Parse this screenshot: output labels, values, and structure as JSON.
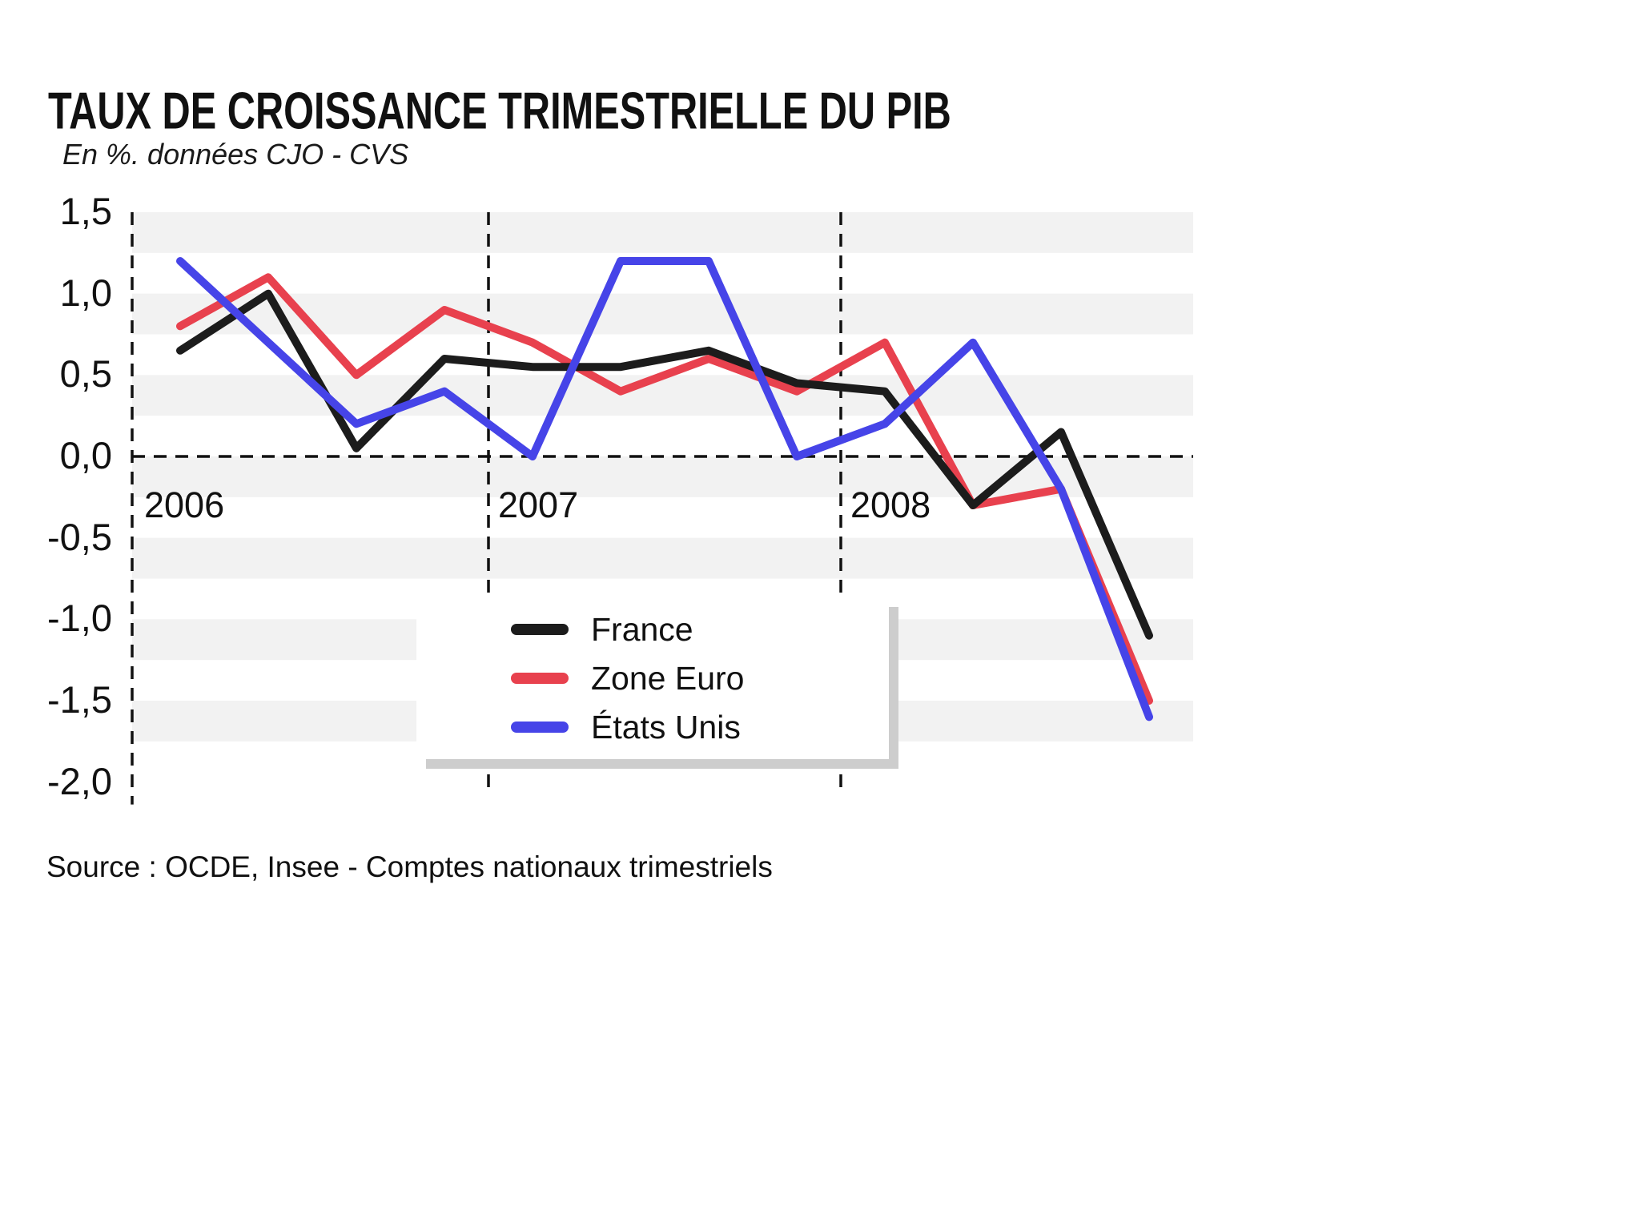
{
  "title": "TAUX DE CROISSANCE TRIMESTRIELLE DU PIB",
  "subtitle": "En %. données CJO - CVS",
  "source": "Source : OCDE, Insee - Comptes nationaux trimestriels",
  "colors": {
    "france": "#1c1c1c",
    "zone_euro": "#e8414e",
    "etats_unis": "#4644e8",
    "stripe": "#f2f2f2",
    "grid": "#111111",
    "legend_shadow": "#cdcdcd"
  },
  "chart_data": {
    "type": "line",
    "title": "TAUX DE CROISSANCE TRIMESTRIELLE DU PIB",
    "subtitle": "En %. données CJO - CVS",
    "x_unit": "quarter",
    "categories": [
      "2006-T1",
      "2006-T2",
      "2006-T3",
      "2006-T4",
      "2007-T1",
      "2007-T2",
      "2007-T3",
      "2007-T4",
      "2008-T1",
      "2008-T2",
      "2008-T3",
      "2008-T4"
    ],
    "year_labels": [
      "2006",
      "2007",
      "2008"
    ],
    "y_ticks": [
      1.5,
      1.0,
      0.5,
      0.0,
      -0.5,
      -1.0,
      -1.5,
      -2.0
    ],
    "y_tick_labels": [
      "1,5",
      "1,0",
      "0,5",
      "0,0",
      "-0,5",
      "-1,0",
      "-1,5",
      "-2,0"
    ],
    "ylim": [
      -2.0,
      1.5
    ],
    "grid": "dashed zero line, dashed left axis, dashed year separators, alternating gray bands",
    "legend_position": "overlay-bottom-center",
    "series": [
      {
        "name": "France",
        "color": "#1c1c1c",
        "values": [
          0.65,
          1.0,
          0.05,
          0.6,
          0.55,
          0.55,
          0.65,
          0.45,
          0.4,
          -0.3,
          0.15,
          -1.1
        ]
      },
      {
        "name": "Zone Euro",
        "color": "#e8414e",
        "values": [
          0.8,
          1.1,
          0.5,
          0.9,
          0.7,
          0.4,
          0.6,
          0.4,
          0.7,
          -0.3,
          -0.2,
          -1.5
        ]
      },
      {
        "name": "États Unis",
        "color": "#4644e8",
        "values": [
          1.2,
          0.7,
          0.2,
          0.4,
          0.0,
          1.2,
          1.2,
          0.0,
          0.2,
          0.7,
          -0.2,
          -1.6
        ]
      }
    ]
  }
}
